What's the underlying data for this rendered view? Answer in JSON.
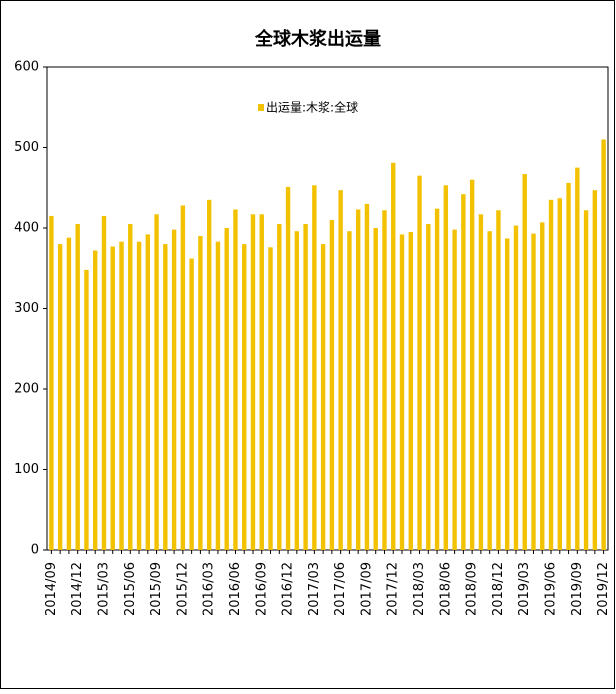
{
  "chart_data": {
    "type": "bar",
    "title": "全球木浆出运量",
    "categories": [
      "2014/09",
      null,
      null,
      "2014/12",
      null,
      null,
      "2015/03",
      null,
      null,
      "2015/06",
      null,
      null,
      "2015/09",
      null,
      null,
      "2015/12",
      null,
      null,
      "2016/03",
      null,
      null,
      "2016/06",
      null,
      null,
      "2016/09",
      null,
      null,
      "2016/12",
      null,
      null,
      "2017/03",
      null,
      null,
      "2017/06",
      null,
      null,
      "2017/09",
      null,
      null,
      "2017/12",
      null,
      null,
      "2018/03",
      null,
      null,
      "2018/06",
      null,
      null,
      "2018/09",
      null,
      null,
      "2018/12",
      null,
      null,
      "2019/03",
      null,
      null,
      "2019/06",
      null,
      null,
      "2019/09",
      null,
      null,
      "2019/12"
    ],
    "series": [
      {
        "name": "出运量:木浆:全球",
        "color": "#f2c200",
        "values": [
          415,
          380,
          388,
          405,
          348,
          372,
          415,
          377,
          383,
          405,
          383,
          392,
          417,
          380,
          398,
          428,
          362,
          390,
          435,
          383,
          400,
          423,
          380,
          417,
          417,
          376,
          405,
          451,
          396,
          405,
          453,
          380,
          410,
          447,
          396,
          423,
          430,
          400,
          422,
          481,
          392,
          395,
          465,
          405,
          424,
          453,
          398,
          442,
          460,
          417,
          396,
          422,
          387,
          403,
          467,
          393,
          407,
          435,
          437,
          456,
          475,
          422,
          447,
          510
        ]
      }
    ],
    "ylim": [
      0,
      600
    ],
    "yticks": [
      0,
      100,
      200,
      300,
      400,
      500,
      600
    ],
    "grid": false,
    "legend": "top"
  }
}
